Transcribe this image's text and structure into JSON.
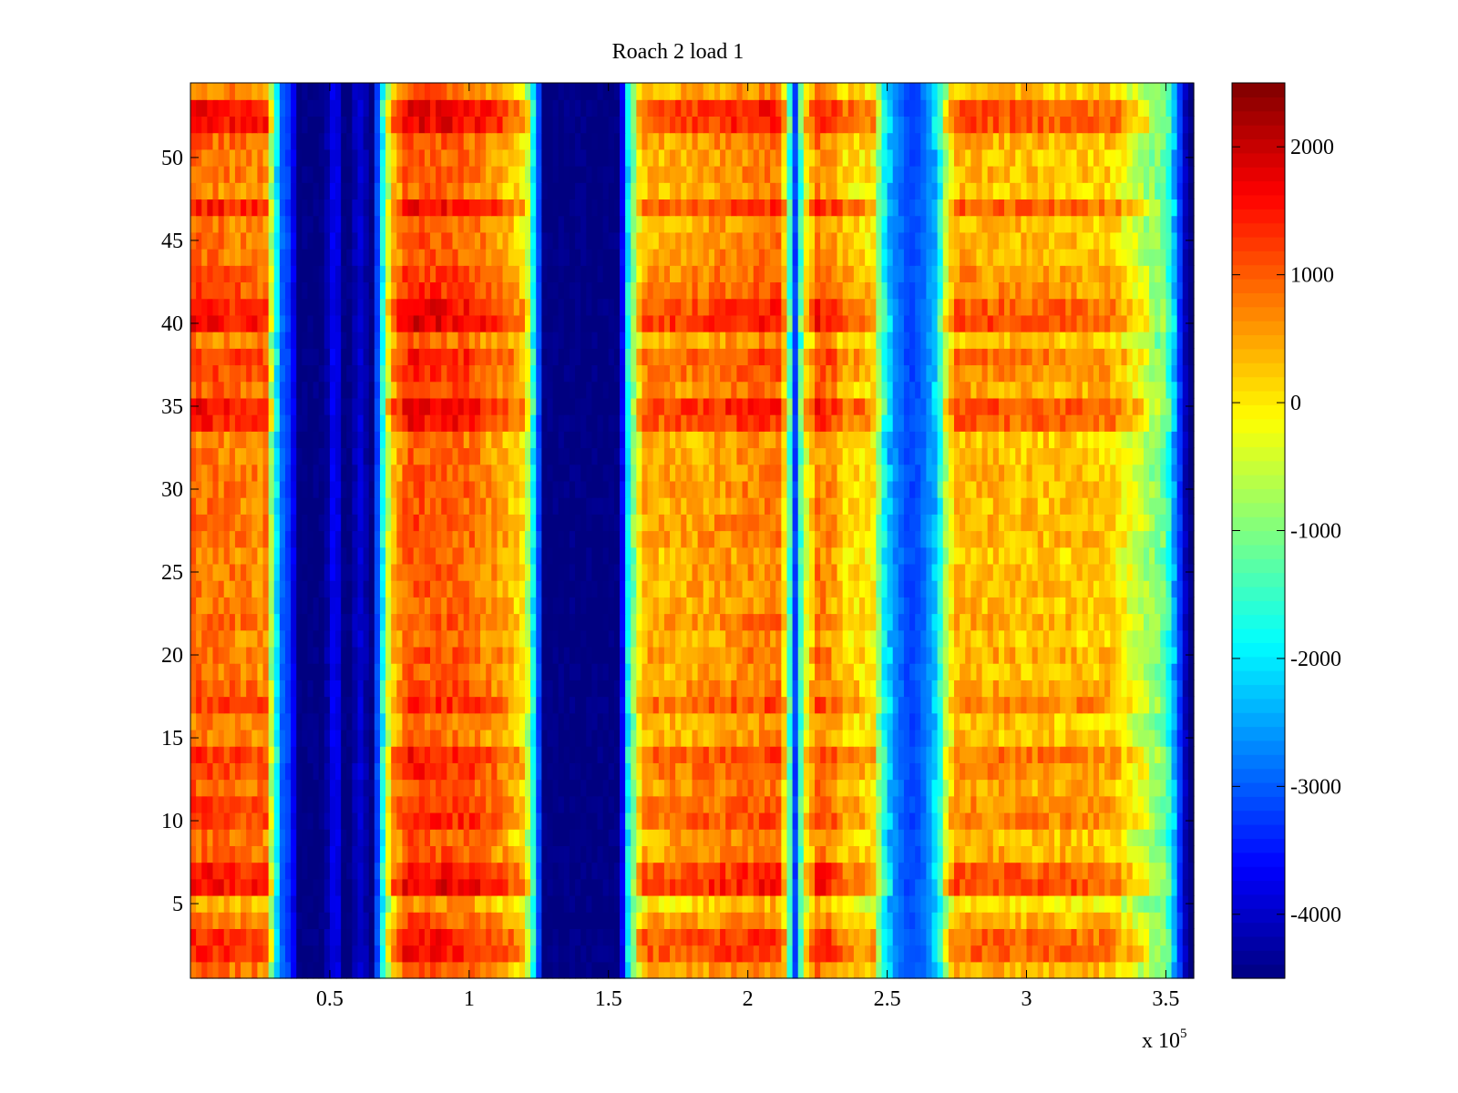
{
  "chart_data": {
    "type": "heatmap",
    "title": "Roach 2 load 1",
    "xlabel": "",
    "ylabel": "",
    "x_multiplier_label": "x 10",
    "x_multiplier_exponent": "5",
    "xlim": [
      0,
      3.6
    ],
    "ylim": [
      0.5,
      54.5
    ],
    "x_ticks": [
      0.5,
      1,
      1.5,
      2,
      2.5,
      3,
      3.5
    ],
    "x_tick_labels": [
      "0.5",
      "1",
      "1.5",
      "2",
      "2.5",
      "3",
      "3.5"
    ],
    "y_ticks": [
      5,
      10,
      15,
      20,
      25,
      30,
      35,
      40,
      45,
      50
    ],
    "y_tick_labels": [
      "5",
      "10",
      "15",
      "20",
      "25",
      "30",
      "35",
      "40",
      "45",
      "50"
    ],
    "rows": 54,
    "colormap": "jet",
    "colorbar": {
      "range": [
        -4500,
        2500
      ],
      "ticks": [
        2000,
        1000,
        0,
        -1000,
        -2000,
        -3000,
        -4000
      ],
      "tick_labels": [
        "2000",
        "1000",
        "0",
        "-1000",
        "-2000",
        "-3000",
        "-4000"
      ]
    },
    "column_profile_x": [
      0,
      0.27,
      0.3,
      0.32,
      0.34,
      0.36,
      0.38,
      0.42,
      0.48,
      0.52,
      0.55,
      0.58,
      0.6,
      0.65,
      0.68,
      0.72,
      0.78,
      1.0,
      1.12,
      1.2,
      1.24,
      1.27,
      1.5,
      1.54,
      1.57,
      1.62,
      1.8,
      2.0,
      2.12,
      2.15,
      2.17,
      2.2,
      2.25,
      2.3,
      2.35,
      2.45,
      2.48,
      2.52,
      2.58,
      2.62,
      2.68,
      2.72,
      2.75,
      3.0,
      3.3,
      3.5,
      3.58,
      3.6
    ],
    "column_profile_value": [
      900,
      700,
      -1500,
      -2500,
      -3400,
      -3000,
      -4500,
      -4500,
      -4500,
      -3500,
      -4500,
      -4500,
      -3800,
      -4500,
      -2500,
      200,
      1100,
      900,
      500,
      0,
      -2500,
      -4500,
      -4500,
      -4500,
      -2000,
      400,
      500,
      700,
      800,
      -1500,
      -3200,
      -500,
      800,
      600,
      200,
      0,
      -1500,
      -2600,
      -3200,
      -3000,
      -2200,
      -200,
      400,
      350,
      250,
      -1200,
      -4500,
      -4500
    ],
    "row_modifiers": {
      "hot_rows": [
        2,
        3,
        6,
        7,
        34,
        35,
        40,
        41,
        47,
        52,
        53
      ],
      "band_rows": [
        10,
        11,
        13,
        14,
        17,
        37,
        38,
        42,
        43
      ],
      "cool_rows": [
        5
      ]
    }
  }
}
